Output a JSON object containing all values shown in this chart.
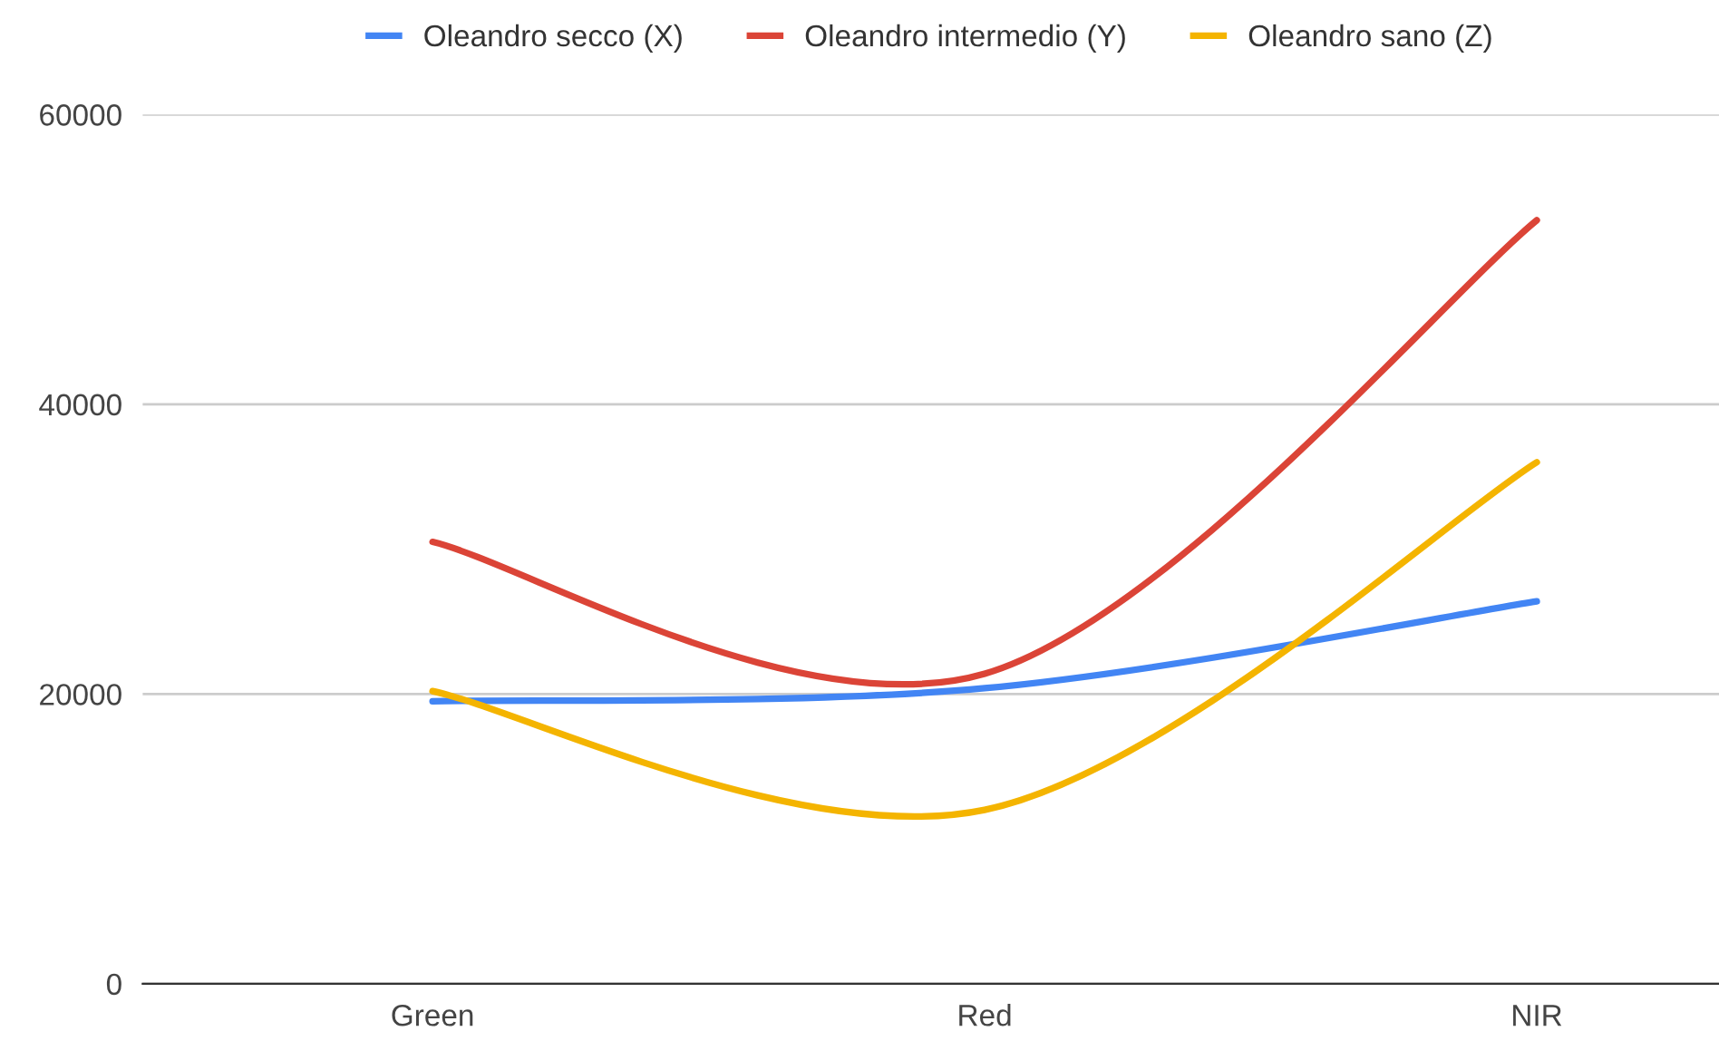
{
  "chart_data": {
    "type": "line",
    "categories": [
      "Green",
      "Red",
      "NIR"
    ],
    "series": [
      {
        "name": "Oleandro secco (X)",
        "color": "#4285f4",
        "values": [
          19500,
          20400,
          26400
        ]
      },
      {
        "name": "Oleandro intermedio (Y)",
        "color": "#db4437",
        "values": [
          30500,
          21400,
          52700
        ]
      },
      {
        "name": "Oleandro sano (Z)",
        "color": "#f4b400",
        "values": [
          20200,
          12000,
          36000
        ]
      }
    ],
    "ylim": [
      0,
      60000
    ],
    "yticks": [
      0,
      20000,
      40000,
      60000
    ],
    "grid": "y",
    "legend": "top",
    "marker": "none",
    "line_style": "solid"
  }
}
